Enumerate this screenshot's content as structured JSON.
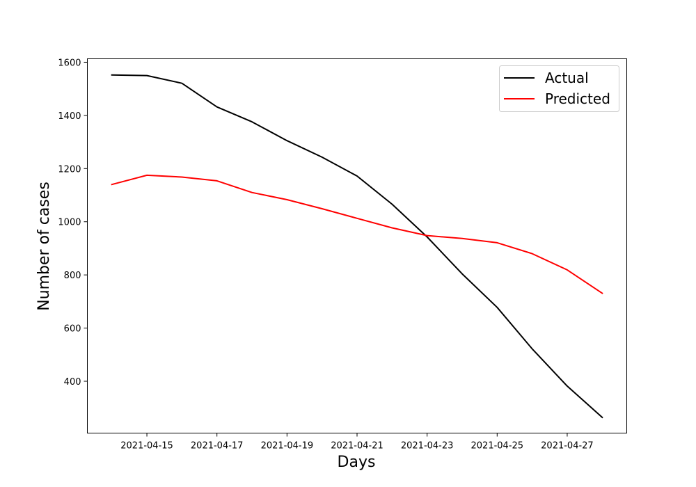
{
  "chart_data": {
    "type": "line",
    "title": "",
    "xlabel": "Days",
    "ylabel": "Number of cases",
    "x": [
      "2021-04-14",
      "2021-04-15",
      "2021-04-16",
      "2021-04-17",
      "2021-04-18",
      "2021-04-19",
      "2021-04-20",
      "2021-04-21",
      "2021-04-22",
      "2021-04-23",
      "2021-04-24",
      "2021-04-25",
      "2021-04-26",
      "2021-04-27",
      "2021-04-28"
    ],
    "series": [
      {
        "name": "Actual",
        "color": "#000000",
        "values": [
          1552,
          1550,
          1521,
          1432,
          1376,
          1305,
          1243,
          1172,
          1066,
          943,
          804,
          678,
          522,
          382,
          264
        ]
      },
      {
        "name": "Predicted",
        "color": "#ff0000",
        "values": [
          1140,
          1175,
          1168,
          1154,
          1110,
          1083,
          1049,
          1013,
          977,
          948,
          937,
          921,
          880,
          819,
          731
        ]
      }
    ],
    "xticks": [
      "2021-04-15",
      "2021-04-17",
      "2021-04-19",
      "2021-04-21",
      "2021-04-23",
      "2021-04-25",
      "2021-04-27"
    ],
    "yticks": [
      400,
      600,
      800,
      1000,
      1200,
      1400,
      1600
    ],
    "ylim": [
      205,
      1613
    ],
    "xlim": [
      "2021-04-13T07:12",
      "2021-04-28T16:48"
    ],
    "grid": false,
    "legend": "top-right"
  }
}
